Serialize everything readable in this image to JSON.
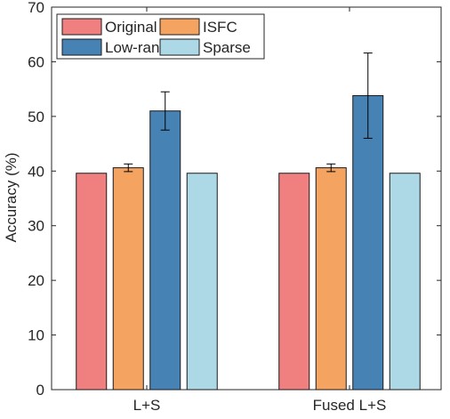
{
  "chart_data": {
    "type": "bar",
    "title": "",
    "xlabel": "",
    "ylabel": "Accuracy (%)",
    "categories": [
      "L+S",
      "Fused L+S"
    ],
    "series": [
      {
        "name": "Original",
        "color": "#F08080",
        "values": [
          39.6,
          39.6
        ],
        "errors": [
          0,
          0
        ]
      },
      {
        "name": "ISFC",
        "color": "#F4A460",
        "values": [
          40.6,
          40.6
        ],
        "errors": [
          0.7,
          0.7
        ]
      },
      {
        "name": "Low-rank",
        "color": "#4682B4",
        "values": [
          51.0,
          53.8
        ],
        "errors": [
          3.5,
          7.8
        ]
      },
      {
        "name": "Sparse",
        "color": "#ADD8E6",
        "values": [
          39.6,
          39.6
        ],
        "errors": [
          0,
          0
        ]
      }
    ],
    "ylim": [
      0,
      70
    ],
    "yticks": [
      0,
      10,
      20,
      30,
      40,
      50,
      60,
      70
    ],
    "legend_position": "top-left",
    "grid": false
  }
}
